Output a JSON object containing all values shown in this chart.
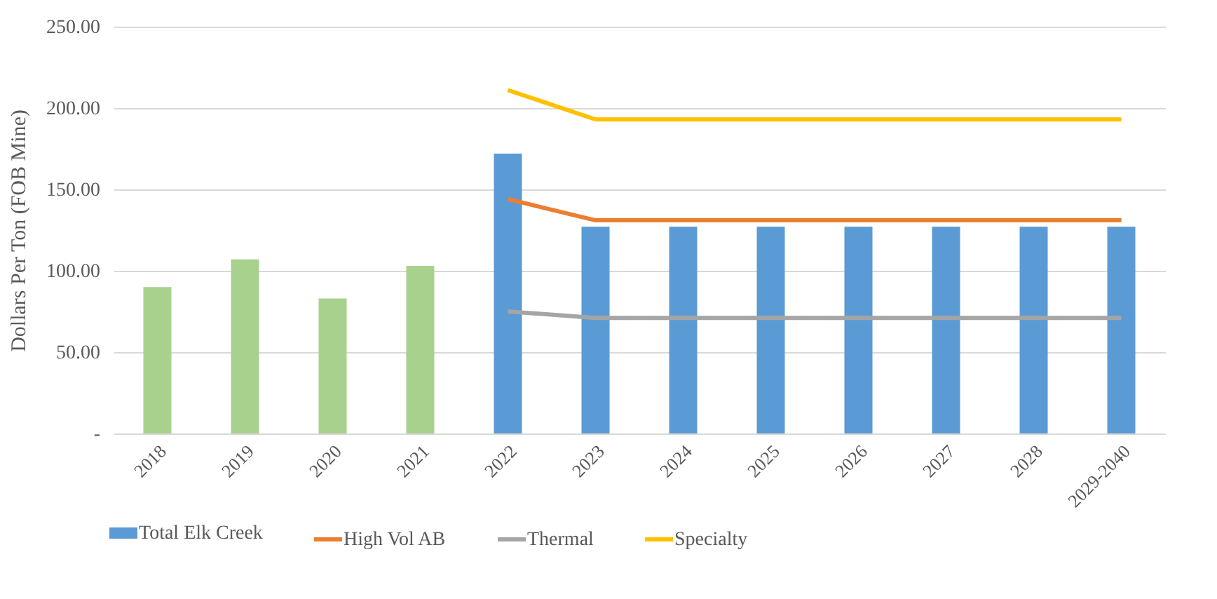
{
  "chart_data": {
    "type": "bar",
    "ylabel": "Dollars Per Ton (FOB Mine)",
    "categories": [
      "2018",
      "2019",
      "2020",
      "2021",
      "2022",
      "2023",
      "2024",
      "2025",
      "2026",
      "2027",
      "2028",
      "2029-2040"
    ],
    "series": [
      {
        "name": "Total Elk Creek",
        "color": "#5b9bd5",
        "colors": [
          "#a9d18e",
          "#a9d18e",
          "#a9d18e",
          "#a9d18e",
          "#5b9bd5",
          "#5b9bd5",
          "#5b9bd5",
          "#5b9bd5",
          "#5b9bd5",
          "#5b9bd5",
          "#5b9bd5",
          "#5b9bd5"
        ],
        "values": [
          90,
          107,
          83,
          103,
          172,
          127,
          127,
          127,
          127,
          127,
          127,
          127
        ]
      },
      {
        "name": "High Vol AB",
        "type": "line",
        "color": "#ed7d31",
        "values": [
          null,
          null,
          null,
          null,
          144,
          131,
          131,
          131,
          131,
          131,
          131,
          131
        ]
      },
      {
        "name": "Thermal",
        "type": "line",
        "color": "#a5a5a5",
        "values": [
          null,
          null,
          null,
          null,
          75,
          71,
          71,
          71,
          71,
          71,
          71,
          71
        ]
      },
      {
        "name": "Specialty",
        "type": "line",
        "color": "#ffc000",
        "values": [
          null,
          null,
          null,
          null,
          211,
          193,
          193,
          193,
          193,
          193,
          193,
          193
        ]
      }
    ],
    "ylim": [
      0,
      250
    ],
    "yticks": [
      {
        "value": 0,
        "label": "-"
      },
      {
        "value": 50,
        "label": "50.00"
      },
      {
        "value": 100,
        "label": "100.00"
      },
      {
        "value": 150,
        "label": "150.00"
      },
      {
        "value": 200,
        "label": "200.00"
      },
      {
        "value": 250,
        "label": "250.00"
      }
    ],
    "grid": "y",
    "legend": "bottom",
    "marker": "none"
  }
}
